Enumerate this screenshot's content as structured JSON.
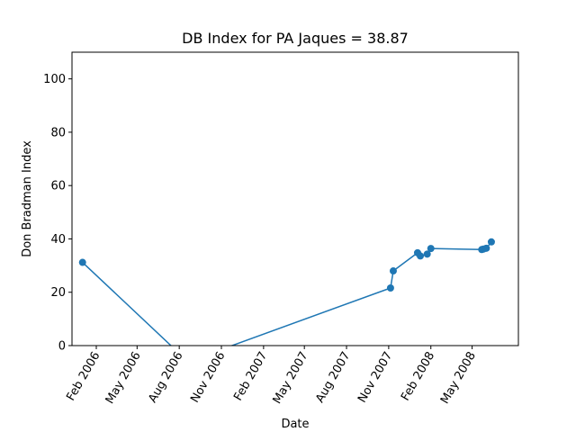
{
  "chart_data": {
    "type": "line",
    "title": "DB Index for PA Jaques = 38.87",
    "xlabel": "Date",
    "ylabel": "Don Bradman Index",
    "xlim": [
      "2005-12-10",
      "2008-08-10"
    ],
    "ylim": [
      0,
      110
    ],
    "yticks": [
      0,
      20,
      40,
      60,
      80,
      100
    ],
    "xticks": [
      {
        "date": "2006-02-01",
        "label": "Feb 2006"
      },
      {
        "date": "2006-05-01",
        "label": "May 2006"
      },
      {
        "date": "2006-08-01",
        "label": "Aug 2006"
      },
      {
        "date": "2006-11-01",
        "label": "Nov 2006"
      },
      {
        "date": "2007-02-01",
        "label": "Feb 2007"
      },
      {
        "date": "2007-05-01",
        "label": "May 2007"
      },
      {
        "date": "2007-08-01",
        "label": "Aug 2007"
      },
      {
        "date": "2007-11-01",
        "label": "Nov 2007"
      },
      {
        "date": "2008-02-01",
        "label": "Feb 2008"
      },
      {
        "date": "2008-05-01",
        "label": "May 2008"
      }
    ],
    "grid": false,
    "series": [
      {
        "color": "#1f77b4",
        "points": [
          {
            "x": "2006-01-02",
            "y": 31.2,
            "marker": true
          },
          {
            "x": "2006-08-20",
            "y": -6.0,
            "marker": false
          },
          {
            "x": "2007-11-05",
            "y": 21.6,
            "marker": true
          },
          {
            "x": "2007-11-11",
            "y": 28.0,
            "marker": true
          },
          {
            "x": "2008-01-03",
            "y": 34.8,
            "marker": true
          },
          {
            "x": "2008-01-09",
            "y": 33.6,
            "marker": true
          },
          {
            "x": "2008-01-24",
            "y": 34.3,
            "marker": true
          },
          {
            "x": "2008-02-01",
            "y": 36.4,
            "marker": true
          },
          {
            "x": "2008-05-22",
            "y": 36.0,
            "marker": true
          },
          {
            "x": "2008-05-26",
            "y": 36.2,
            "marker": true
          },
          {
            "x": "2008-06-01",
            "y": 36.5,
            "marker": true
          },
          {
            "x": "2008-06-12",
            "y": 38.87,
            "marker": true
          }
        ]
      }
    ]
  }
}
